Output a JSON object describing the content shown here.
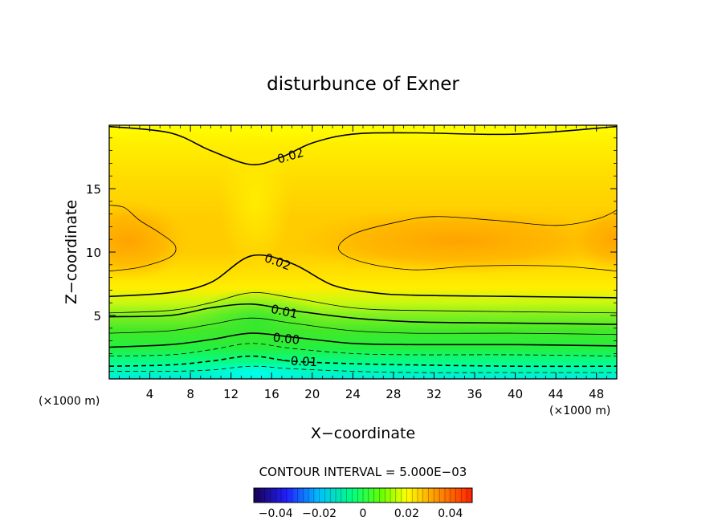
{
  "chart_data": {
    "type": "contour",
    "title": "disturbunce of Exner",
    "xlabel": "X−coordinate",
    "ylabel": "Z−coordinate",
    "x_unit_left": "(×1000 m)",
    "x_unit_right": "(×1000 m)",
    "xlim": [
      0,
      50
    ],
    "ylim": [
      0,
      20
    ],
    "x_ticks": [
      4,
      8,
      12,
      16,
      20,
      24,
      28,
      32,
      36,
      40,
      44,
      48
    ],
    "y_ticks": [
      5,
      10,
      15
    ],
    "contour_interval_text": "CONTOUR INTERVAL = 5.000E−03",
    "contour_labels": [
      "0.02",
      "0.02",
      "0.01",
      "0.00",
      "−0.01"
    ],
    "colorbar": {
      "min": -0.05,
      "max": 0.05,
      "ticks": [
        -0.04,
        -0.02,
        0,
        0.02,
        0.04
      ],
      "tick_labels": [
        "−0.04",
        "−0.02",
        "0",
        "0.02",
        "0.04"
      ]
    },
    "contours": [
      {
        "level": -0.015,
        "dashed": true,
        "points": [
          [
            0,
            0.6
          ],
          [
            6,
            0.6
          ],
          [
            10,
            0.7
          ],
          [
            14,
            1.0
          ],
          [
            18,
            0.8
          ],
          [
            24,
            0.6
          ],
          [
            30,
            0.5
          ],
          [
            40,
            0.5
          ],
          [
            50,
            0.5
          ]
        ]
      },
      {
        "level": -0.01,
        "dashed": true,
        "points": [
          [
            0,
            1.0
          ],
          [
            6,
            1.1
          ],
          [
            10,
            1.4
          ],
          [
            14,
            1.8
          ],
          [
            18,
            1.4
          ],
          [
            24,
            1.2
          ],
          [
            30,
            1.1
          ],
          [
            40,
            1.0
          ],
          [
            50,
            1.0
          ]
        ]
      },
      {
        "level": -0.005,
        "dashed": true,
        "points": [
          [
            0,
            1.8
          ],
          [
            6,
            1.9
          ],
          [
            10,
            2.3
          ],
          [
            14,
            2.8
          ],
          [
            18,
            2.4
          ],
          [
            24,
            2.0
          ],
          [
            30,
            1.9
          ],
          [
            40,
            1.9
          ],
          [
            50,
            1.8
          ]
        ]
      },
      {
        "level": 0.0,
        "dashed": false,
        "points": [
          [
            0,
            2.5
          ],
          [
            6,
            2.7
          ],
          [
            10,
            3.1
          ],
          [
            14,
            3.6
          ],
          [
            18,
            3.3
          ],
          [
            24,
            2.8
          ],
          [
            30,
            2.7
          ],
          [
            40,
            2.7
          ],
          [
            50,
            2.6
          ]
        ]
      },
      {
        "level": 0.005,
        "dashed": false,
        "points": [
          [
            0,
            3.6
          ],
          [
            6,
            3.8
          ],
          [
            10,
            4.3
          ],
          [
            14,
            4.8
          ],
          [
            18,
            4.4
          ],
          [
            24,
            3.8
          ],
          [
            30,
            3.6
          ],
          [
            40,
            3.6
          ],
          [
            50,
            3.5
          ]
        ]
      },
      {
        "level": 0.01,
        "dashed": false,
        "points": [
          [
            0,
            4.9
          ],
          [
            6,
            5.0
          ],
          [
            10,
            5.6
          ],
          [
            14,
            5.9
          ],
          [
            18,
            5.4
          ],
          [
            24,
            4.8
          ],
          [
            30,
            4.5
          ],
          [
            40,
            4.4
          ],
          [
            50,
            4.3
          ]
        ]
      },
      {
        "level": 0.015,
        "dashed": false,
        "points": [
          [
            0,
            5.2
          ],
          [
            6,
            5.4
          ],
          [
            10,
            6.0
          ],
          [
            14,
            6.8
          ],
          [
            18,
            6.4
          ],
          [
            24,
            5.6
          ],
          [
            30,
            5.4
          ],
          [
            40,
            5.3
          ],
          [
            50,
            5.2
          ]
        ]
      },
      {
        "level": 0.02,
        "dashed": false,
        "points": [
          [
            0,
            6.5
          ],
          [
            6,
            6.8
          ],
          [
            10,
            7.6
          ],
          [
            14,
            9.7
          ],
          [
            18,
            9.1
          ],
          [
            22,
            7.4
          ],
          [
            26,
            6.8
          ],
          [
            30,
            6.6
          ],
          [
            40,
            6.5
          ],
          [
            50,
            6.4
          ]
        ]
      },
      {
        "level": 0.02,
        "dashed": false,
        "points": [
          [
            0,
            19.9
          ],
          [
            6,
            19.4
          ],
          [
            10,
            18.0
          ],
          [
            14,
            16.9
          ],
          [
            17,
            17.5
          ],
          [
            20,
            18.6
          ],
          [
            24,
            19.3
          ],
          [
            30,
            19.4
          ],
          [
            40,
            19.3
          ],
          [
            50,
            19.9
          ]
        ]
      },
      {
        "level": 0.025,
        "dashed": false,
        "points": [
          [
            0,
            8.5
          ],
          [
            3,
            8.8
          ],
          [
            6,
            9.6
          ],
          [
            6.5,
            10.5
          ],
          [
            5,
            11.5
          ],
          [
            3,
            12.5
          ],
          [
            1.5,
            13.5
          ],
          [
            0,
            13.7
          ]
        ]
      },
      {
        "level": 0.025,
        "dashed": false,
        "points": [
          [
            50,
            8.5
          ],
          [
            44,
            8.9
          ],
          [
            36,
            8.9
          ],
          [
            30,
            8.6
          ],
          [
            25,
            9.2
          ],
          [
            22.6,
            10.2
          ],
          [
            24,
            11.4
          ],
          [
            28,
            12.3
          ],
          [
            32,
            12.8
          ],
          [
            38,
            12.5
          ],
          [
            44,
            12.1
          ],
          [
            48,
            12.6
          ],
          [
            50,
            13.3
          ]
        ]
      }
    ]
  }
}
